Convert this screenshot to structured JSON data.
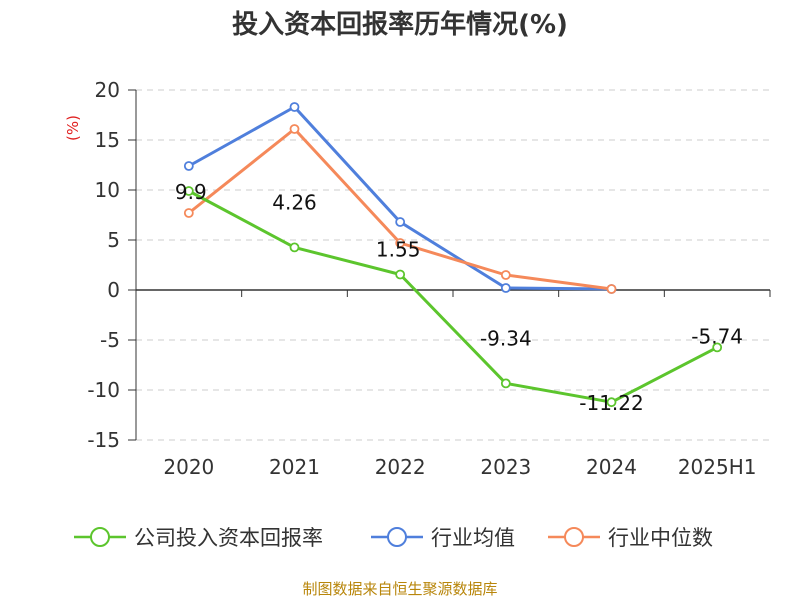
{
  "chart_data": {
    "type": "line",
    "title": "投入资本回报率历年情况(%)",
    "ylabel": "(%)",
    "ylim": [
      -15,
      20
    ],
    "yticks": [
      20,
      15,
      10,
      5,
      0,
      -5,
      -10,
      -15
    ],
    "categories": [
      "2020",
      "2021",
      "2022",
      "2023",
      "2024",
      "2025H1"
    ],
    "grid": true,
    "legend_position": "bottom",
    "series": [
      {
        "name": "公司投入资本回报率",
        "color": "#5cc52d",
        "values": [
          9.9,
          4.26,
          1.55,
          -9.34,
          -11.22,
          -5.74
        ],
        "labels": [
          "9.9",
          "4.26",
          "1.55",
          "-9.34",
          "-11.22",
          "-5.74"
        ]
      },
      {
        "name": "行业均值",
        "color": "#4f7fdc",
        "values": [
          12.4,
          18.3,
          6.8,
          0.2,
          0.1,
          null
        ]
      },
      {
        "name": "行业中位数",
        "color": "#f5895a",
        "values": [
          7.7,
          16.1,
          4.7,
          1.5,
          0.1,
          null
        ]
      }
    ]
  },
  "source_text": "制图数据来自恒生聚源数据库"
}
